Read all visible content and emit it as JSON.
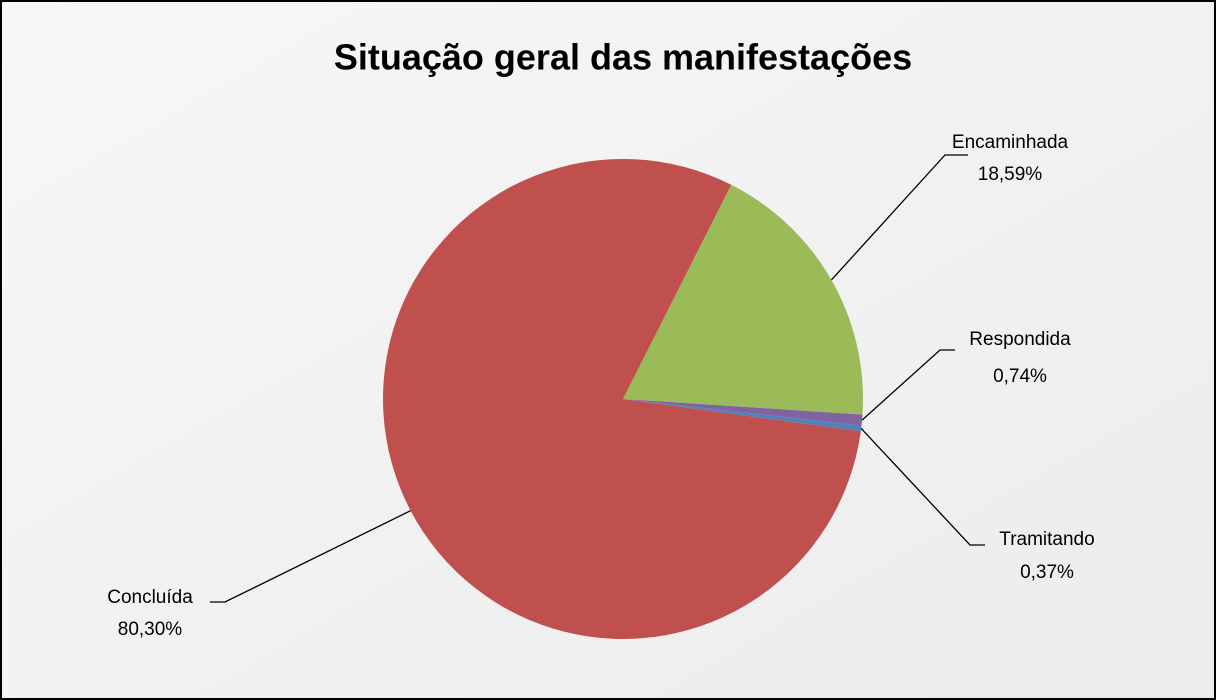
{
  "chart_data": {
    "type": "pie",
    "title": "Situação geral das manifestações",
    "categories": [
      "Encaminhada",
      "Respondida",
      "Tramitando",
      "Concluída"
    ],
    "values": [
      18.59,
      0.74,
      0.37,
      80.3
    ],
    "value_labels": [
      "18,59%",
      "0,74%",
      "0,37%",
      "80,30%"
    ],
    "colors": [
      "#9bbb59",
      "#8064a2",
      "#4f81bd",
      "#c0504d"
    ]
  }
}
